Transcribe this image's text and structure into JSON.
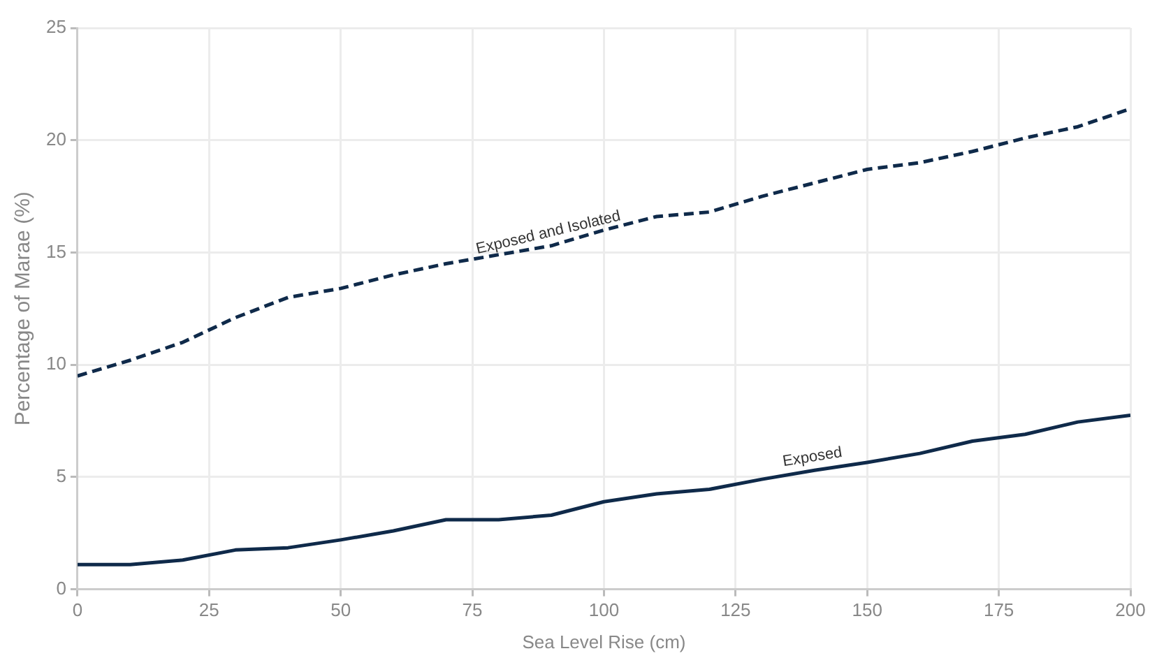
{
  "chart_data": {
    "type": "line",
    "xlabel": "Sea Level Rise (cm)",
    "ylabel": "Percentage of Marae (%)",
    "x": [
      0,
      10,
      20,
      30,
      40,
      50,
      60,
      70,
      80,
      90,
      100,
      110,
      120,
      130,
      140,
      150,
      160,
      170,
      180,
      190,
      200
    ],
    "series": [
      {
        "name": "Exposed and Isolated",
        "color": "#0f2a4a",
        "line_style": "dashed",
        "values": [
          9.5,
          10.2,
          11.0,
          12.1,
          13.0,
          13.4,
          14.0,
          14.5,
          14.9,
          15.3,
          16.0,
          16.6,
          16.8,
          17.5,
          18.1,
          18.7,
          19.0,
          19.5,
          20.1,
          20.6,
          21.4
        ]
      },
      {
        "name": "Exposed",
        "color": "#0f2a4a",
        "line_style": "solid",
        "values": [
          1.1,
          1.1,
          1.3,
          1.75,
          1.85,
          2.2,
          2.6,
          3.1,
          3.1,
          3.3,
          3.9,
          4.25,
          4.45,
          4.9,
          5.3,
          5.65,
          6.05,
          6.6,
          6.9,
          7.45,
          7.75
        ]
      }
    ],
    "xlim": [
      0,
      200
    ],
    "xticks": [
      0,
      25,
      50,
      75,
      100,
      125,
      150,
      175,
      200
    ],
    "ylim": [
      0,
      25
    ],
    "yticks": [
      0,
      5,
      10,
      15,
      20,
      25
    ],
    "grid": true,
    "legend": false,
    "marker": "none"
  }
}
